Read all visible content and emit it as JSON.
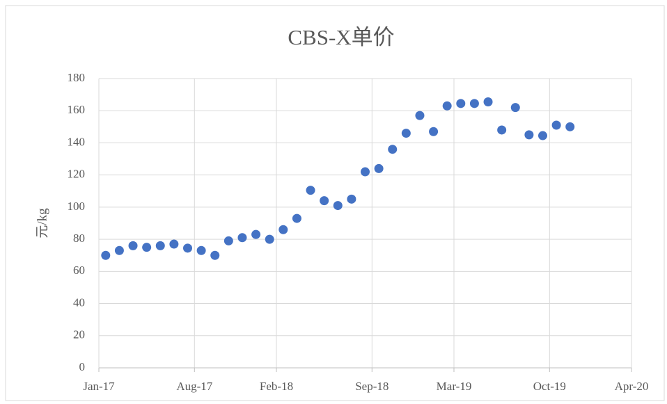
{
  "chart_data": {
    "type": "scatter",
    "title": "CBS-X单价",
    "y_label": "元/kg",
    "x": [
      "2017-01",
      "2017-02",
      "2017-03",
      "2017-04",
      "2017-05",
      "2017-06",
      "2017-07",
      "2017-08",
      "2017-09",
      "2017-10",
      "2017-11",
      "2017-12",
      "2018-01",
      "2018-02",
      "2018-03",
      "2018-04",
      "2018-05",
      "2018-06",
      "2018-07",
      "2018-08",
      "2018-09",
      "2018-10",
      "2018-11",
      "2018-12",
      "2019-01",
      "2019-02",
      "2019-03",
      "2019-04",
      "2019-05",
      "2019-06",
      "2019-07",
      "2019-08",
      "2019-09",
      "2019-10",
      "2019-11"
    ],
    "series": [
      {
        "name": "CBS-X单价",
        "color": "#4472c4",
        "values": [
          70,
          73,
          76,
          75,
          76,
          77,
          74.5,
          73,
          70,
          79,
          81,
          83,
          80,
          86,
          93,
          110.5,
          104,
          101,
          105,
          122,
          124,
          136,
          146,
          157,
          147,
          163,
          164.5,
          164.5,
          165.5,
          148,
          162,
          145,
          144.5,
          151,
          150
        ]
      }
    ],
    "xlim": [
      "2017-01",
      "2020-04"
    ],
    "xticks": [
      {
        "value": "2017-01",
        "label": "Jan-17"
      },
      {
        "value": "2017-08",
        "label": "Aug-17"
      },
      {
        "value": "2018-02",
        "label": "Feb-18"
      },
      {
        "value": "2018-09",
        "label": "Sep-18"
      },
      {
        "value": "2019-03",
        "label": "Mar-19"
      },
      {
        "value": "2019-10",
        "label": "Oct-19"
      },
      {
        "value": "2020-04",
        "label": "Apr-20"
      }
    ],
    "ylim": [
      0,
      180
    ],
    "yticks": [
      0,
      20,
      40,
      60,
      80,
      100,
      120,
      140,
      160,
      180
    ],
    "grid": true
  }
}
